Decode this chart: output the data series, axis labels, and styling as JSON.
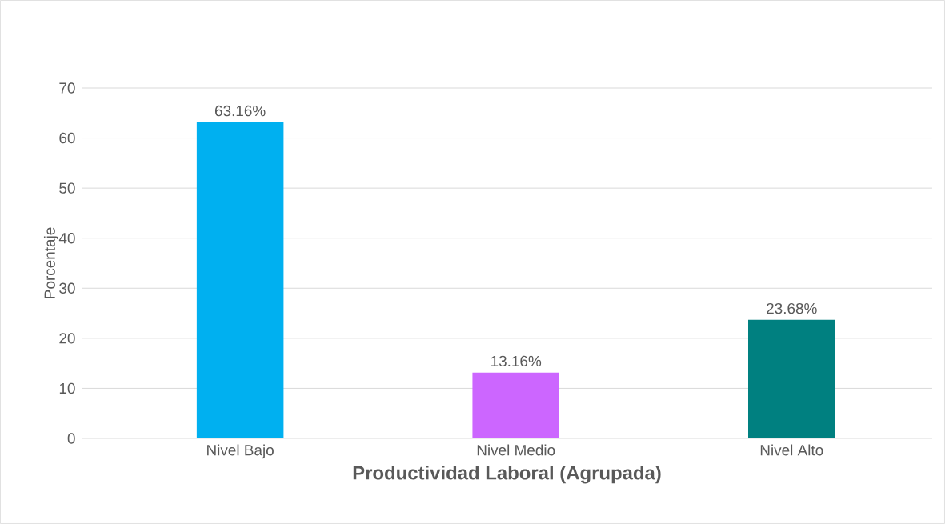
{
  "chart_data": {
    "type": "bar",
    "categories": [
      "Nivel Bajo",
      "Nivel Medio",
      "Nivel Alto"
    ],
    "values": [
      63.16,
      13.16,
      23.68
    ],
    "colors": [
      "#00b0f0",
      "#cc66ff",
      "#008080"
    ],
    "value_labels": [
      "63.16%",
      "13.16%",
      "23.68%"
    ],
    "xlabel": "Productividad Laboral (Agrupada)",
    "ylabel": "Porcentaje",
    "ylim": [
      0,
      70
    ],
    "yticks": [
      0,
      10,
      20,
      30,
      40,
      50,
      60,
      70
    ],
    "grid": "y"
  }
}
